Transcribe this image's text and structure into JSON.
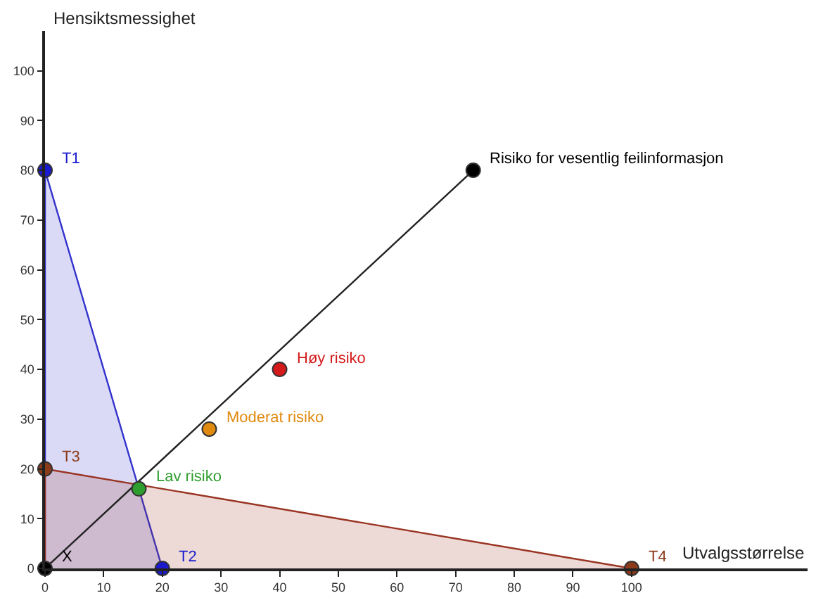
{
  "chart_data": {
    "type": "scatter",
    "xlabel": "Utvalgsstørrelse",
    "ylabel": "Hensiktsmessighet",
    "xlim": [
      0,
      130
    ],
    "ylim": [
      0,
      108
    ],
    "xticks": [
      0,
      10,
      20,
      30,
      40,
      50,
      60,
      70,
      80,
      90,
      100
    ],
    "yticks": [
      0,
      10,
      20,
      30,
      40,
      50,
      60,
      70,
      80,
      90,
      100
    ],
    "series": [
      {
        "type": "area",
        "color": "#3333cc",
        "x": [
          0,
          0,
          20
        ],
        "values": [
          0,
          80,
          0
        ]
      },
      {
        "type": "area",
        "color": "#993322",
        "x": [
          0,
          0,
          100
        ],
        "values": [
          0,
          20,
          0
        ]
      },
      {
        "type": "line",
        "color": "#222222",
        "x": [
          0,
          73
        ],
        "values": [
          0,
          80
        ]
      },
      {
        "x": [
          0,
          20,
          0,
          100,
          16,
          28,
          40,
          73,
          0
        ],
        "values": [
          80,
          0,
          20,
          0,
          16,
          28,
          40,
          80,
          0
        ],
        "colors": [
          "#1a1acc",
          "#1a1acc",
          "#8b3a1a",
          "#8b3a1a",
          "#2e9e2e",
          "#e08a10",
          "#d41a1a",
          "#000000",
          "#000000"
        ]
      }
    ],
    "annotations": [
      {
        "text": "T1",
        "x": 0,
        "y": 80
      },
      {
        "text": "T2",
        "x": 20,
        "y": 0
      },
      {
        "text": "T3",
        "x": 0,
        "y": 20
      },
      {
        "text": "T4",
        "x": 100,
        "y": 0
      },
      {
        "text": "Lav risiko",
        "x": 16,
        "y": 16
      },
      {
        "text": "Moderat risiko",
        "x": 28,
        "y": 28
      },
      {
        "text": "Høy risiko",
        "x": 40,
        "y": 40
      },
      {
        "text": "Risiko for vesentlig feilinformasjon",
        "x": 73,
        "y": 80
      },
      {
        "text": "X",
        "x": 0,
        "y": 0
      }
    ]
  }
}
